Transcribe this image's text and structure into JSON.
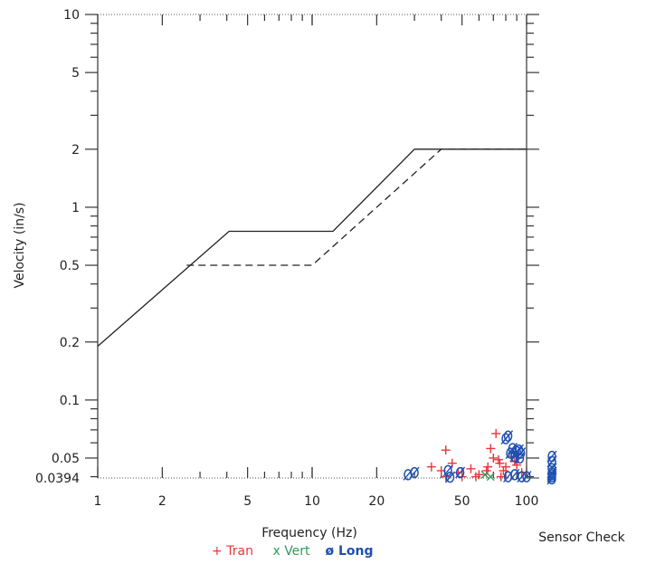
{
  "chart_data": {
    "type": "scatter",
    "title": "",
    "xlabel": "Frequency (Hz)",
    "ylabel": "Velocity (in/s)",
    "x_scale": "log",
    "y_scale": "log",
    "xlim": [
      1,
      100
    ],
    "ylim": [
      0.0394,
      10
    ],
    "x_ticks": [
      1,
      2,
      5,
      10,
      20,
      50,
      100
    ],
    "x_tick_labels": [
      "1",
      "2",
      "5",
      "10",
      "20",
      "50",
      "100"
    ],
    "y_ticks": [
      0.0394,
      0.05,
      0.1,
      0.2,
      0.5,
      1,
      2,
      5,
      10
    ],
    "y_tick_labels": [
      "0.0394",
      "0.05",
      "0.1",
      "0.2",
      "0.5",
      "1",
      "2",
      "5",
      "10"
    ],
    "grid": false,
    "legend_placement": "bottom",
    "sensor_check_label": "Sensor Check",
    "lines": [
      {
        "style": "solid",
        "color": "#222222",
        "x": [
          1,
          4.1,
          12.5,
          30,
          100
        ],
        "y": [
          0.19,
          0.75,
          0.75,
          2.0,
          2.0
        ]
      },
      {
        "style": "dashed",
        "color": "#222222",
        "x": [
          2.6,
          10,
          40,
          100
        ],
        "y": [
          0.5,
          0.5,
          2.0,
          2.0
        ]
      }
    ],
    "series": [
      {
        "name": "Tran",
        "marker": "+",
        "color": "#e8363a",
        "x": [
          42,
          36,
          40,
          45,
          48,
          55,
          60,
          65,
          68,
          72,
          74,
          75,
          78,
          80,
          85,
          90,
          95,
          42,
          50,
          58,
          66,
          70,
          76,
          88
        ],
        "y": [
          0.055,
          0.045,
          0.043,
          0.047,
          0.042,
          0.044,
          0.041,
          0.043,
          0.056,
          0.067,
          0.049,
          0.047,
          0.043,
          0.045,
          0.051,
          0.046,
          0.042,
          0.04,
          0.04,
          0.04,
          0.045,
          0.05,
          0.04,
          0.048
        ]
      },
      {
        "name": "Vert",
        "marker": "x",
        "color": "#2e9a5a",
        "x": [
          64,
          68
        ],
        "y": [
          0.041,
          0.04
        ]
      },
      {
        "name": "Long",
        "marker": "ø",
        "color": "#1f4fb0",
        "x": [
          28,
          30,
          43,
          44,
          49,
          80,
          82,
          84,
          86,
          88,
          90,
          92,
          93,
          94,
          95,
          82,
          88,
          100
        ],
        "y": [
          0.041,
          0.042,
          0.043,
          0.0398,
          0.042,
          0.063,
          0.065,
          0.053,
          0.056,
          0.051,
          0.054,
          0.055,
          0.05,
          0.053,
          0.04,
          0.04,
          0.041,
          0.04
        ]
      }
    ],
    "sensor_check": {
      "color": "#1f4fb0",
      "y": [
        0.051,
        0.048,
        0.044,
        0.042,
        0.041,
        0.04,
        0.039
      ]
    }
  }
}
